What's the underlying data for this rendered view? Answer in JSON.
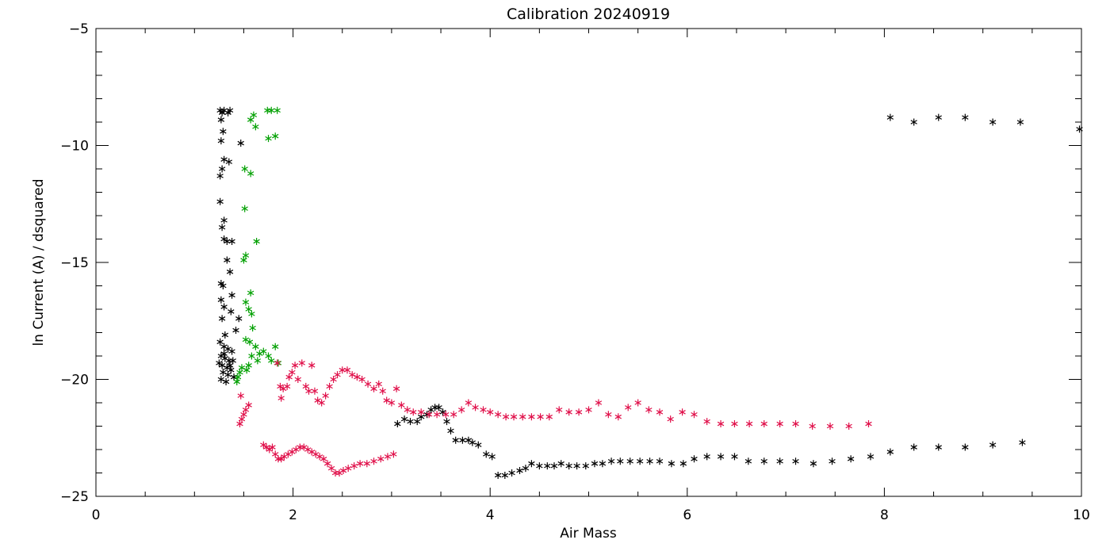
{
  "chart_data": {
    "type": "scatter",
    "title": "Calibration 20240919",
    "xlabel": "Air Mass",
    "ylabel": "ln Current (A) / dsquared",
    "xlim": [
      0,
      10
    ],
    "ylim": [
      -25,
      -5
    ],
    "x_ticks": [
      0,
      2,
      4,
      6,
      8,
      10
    ],
    "x_tick_labels": [
      "0",
      "2",
      "4",
      "6",
      "8",
      "10"
    ],
    "y_ticks": [
      -25,
      -20,
      -15,
      -10,
      -5
    ],
    "y_tick_labels": [
      "−25",
      "−20",
      "−15",
      "−10",
      "−5"
    ],
    "marker": "asterisk",
    "grid": false,
    "legend": "none",
    "series": [
      {
        "color": "#000000",
        "points": [
          [
            1.26,
            -8.5
          ],
          [
            1.28,
            -8.6
          ],
          [
            1.27,
            -8.9
          ],
          [
            1.3,
            -8.5
          ],
          [
            1.34,
            -8.6
          ],
          [
            1.36,
            -8.5
          ],
          [
            1.29,
            -9.4
          ],
          [
            1.27,
            -9.8
          ],
          [
            1.35,
            -10.7
          ],
          [
            1.3,
            -10.6
          ],
          [
            1.28,
            -11.0
          ],
          [
            1.26,
            -11.3
          ],
          [
            1.47,
            -9.9
          ],
          [
            1.26,
            -12.4
          ],
          [
            1.3,
            -13.2
          ],
          [
            1.28,
            -13.5
          ],
          [
            1.3,
            -14.0
          ],
          [
            1.33,
            -14.1
          ],
          [
            1.38,
            -14.1
          ],
          [
            1.33,
            -14.9
          ],
          [
            1.36,
            -15.4
          ],
          [
            1.27,
            -15.9
          ],
          [
            1.29,
            -16.0
          ],
          [
            1.38,
            -16.4
          ],
          [
            1.27,
            -16.6
          ],
          [
            1.3,
            -16.9
          ],
          [
            1.37,
            -17.1
          ],
          [
            1.28,
            -17.4
          ],
          [
            1.45,
            -17.4
          ],
          [
            1.42,
            -17.9
          ],
          [
            1.31,
            -18.1
          ],
          [
            1.26,
            -18.4
          ],
          [
            1.3,
            -18.6
          ],
          [
            1.34,
            -18.7
          ],
          [
            1.38,
            -18.8
          ],
          [
            1.27,
            -19.0
          ],
          [
            1.31,
            -19.1
          ],
          [
            1.35,
            -19.2
          ],
          [
            1.28,
            -19.4
          ],
          [
            1.33,
            -19.5
          ],
          [
            1.37,
            -19.6
          ],
          [
            1.29,
            -19.7
          ],
          [
            1.34,
            -19.8
          ],
          [
            1.4,
            -19.9
          ],
          [
            1.27,
            -20.0
          ],
          [
            1.32,
            -20.1
          ],
          [
            1.36,
            -19.4
          ],
          [
            1.3,
            -18.9
          ],
          [
            1.25,
            -19.3
          ],
          [
            1.39,
            -19.2
          ],
          [
            3.06,
            -21.9
          ],
          [
            3.13,
            -21.7
          ],
          [
            3.19,
            -21.8
          ],
          [
            3.26,
            -21.8
          ],
          [
            3.3,
            -21.6
          ],
          [
            3.36,
            -21.5
          ],
          [
            3.4,
            -21.3
          ],
          [
            3.44,
            -21.2
          ],
          [
            3.48,
            -21.2
          ],
          [
            3.52,
            -21.4
          ],
          [
            3.56,
            -21.8
          ],
          [
            3.6,
            -22.2
          ],
          [
            3.65,
            -22.6
          ],
          [
            3.72,
            -22.6
          ],
          [
            3.78,
            -22.6
          ],
          [
            3.82,
            -22.7
          ],
          [
            3.88,
            -22.8
          ],
          [
            3.96,
            -23.2
          ],
          [
            4.02,
            -23.3
          ],
          [
            4.08,
            -24.1
          ],
          [
            4.15,
            -24.1
          ],
          [
            4.22,
            -24.0
          ],
          [
            4.3,
            -23.9
          ],
          [
            4.36,
            -23.8
          ],
          [
            4.42,
            -23.6
          ],
          [
            4.5,
            -23.7
          ],
          [
            4.58,
            -23.7
          ],
          [
            4.65,
            -23.7
          ],
          [
            4.72,
            -23.6
          ],
          [
            4.8,
            -23.7
          ],
          [
            4.88,
            -23.7
          ],
          [
            4.97,
            -23.7
          ],
          [
            5.06,
            -23.6
          ],
          [
            5.14,
            -23.6
          ],
          [
            5.23,
            -23.5
          ],
          [
            5.32,
            -23.5
          ],
          [
            5.42,
            -23.5
          ],
          [
            5.52,
            -23.5
          ],
          [
            5.62,
            -23.5
          ],
          [
            5.72,
            -23.5
          ],
          [
            5.84,
            -23.6
          ],
          [
            5.96,
            -23.6
          ],
          [
            6.07,
            -23.4
          ],
          [
            6.2,
            -23.3
          ],
          [
            6.34,
            -23.3
          ],
          [
            6.48,
            -23.3
          ],
          [
            6.62,
            -23.5
          ],
          [
            6.78,
            -23.5
          ],
          [
            6.94,
            -23.5
          ],
          [
            7.1,
            -23.5
          ],
          [
            7.28,
            -23.6
          ],
          [
            7.47,
            -23.5
          ],
          [
            7.66,
            -23.4
          ],
          [
            7.86,
            -23.3
          ],
          [
            8.06,
            -23.1
          ],
          [
            8.3,
            -22.9
          ],
          [
            8.55,
            -22.9
          ],
          [
            8.82,
            -22.9
          ],
          [
            9.1,
            -22.8
          ],
          [
            9.4,
            -22.7
          ],
          [
            8.06,
            -8.8
          ],
          [
            8.3,
            -9.0
          ],
          [
            8.55,
            -8.8
          ],
          [
            8.82,
            -8.8
          ],
          [
            9.1,
            -9.0
          ],
          [
            9.38,
            -9.0
          ],
          [
            9.98,
            -9.3
          ]
        ]
      },
      {
        "color": "#00a000",
        "points": [
          [
            1.74,
            -8.5
          ],
          [
            1.78,
            -8.5
          ],
          [
            1.84,
            -8.5
          ],
          [
            1.57,
            -8.9
          ],
          [
            1.6,
            -8.7
          ],
          [
            1.62,
            -9.2
          ],
          [
            1.75,
            -9.7
          ],
          [
            1.82,
            -9.6
          ],
          [
            1.51,
            -11.0
          ],
          [
            1.57,
            -11.2
          ],
          [
            1.51,
            -12.7
          ],
          [
            1.63,
            -14.1
          ],
          [
            1.52,
            -14.7
          ],
          [
            1.5,
            -14.9
          ],
          [
            1.57,
            -16.3
          ],
          [
            1.52,
            -16.7
          ],
          [
            1.55,
            -17.0
          ],
          [
            1.58,
            -17.2
          ],
          [
            1.59,
            -17.8
          ],
          [
            1.52,
            -18.3
          ],
          [
            1.56,
            -18.4
          ],
          [
            1.62,
            -18.6
          ],
          [
            1.66,
            -18.9
          ],
          [
            1.7,
            -18.8
          ],
          [
            1.58,
            -19.0
          ],
          [
            1.64,
            -19.2
          ],
          [
            1.55,
            -19.4
          ],
          [
            1.48,
            -19.5
          ],
          [
            1.46,
            -19.7
          ],
          [
            1.44,
            -19.9
          ],
          [
            1.43,
            -20.1
          ],
          [
            1.53,
            -19.6
          ],
          [
            1.75,
            -19.0
          ],
          [
            1.82,
            -18.6
          ],
          [
            1.78,
            -19.2
          ],
          [
            1.85,
            -19.3
          ]
        ]
      },
      {
        "color": "#e0104a",
        "points": [
          [
            1.46,
            -21.9
          ],
          [
            1.48,
            -21.7
          ],
          [
            1.5,
            -21.5
          ],
          [
            1.52,
            -21.3
          ],
          [
            1.55,
            -21.1
          ],
          [
            1.47,
            -20.7
          ],
          [
            1.84,
            -19.3
          ],
          [
            1.87,
            -20.3
          ],
          [
            1.88,
            -20.8
          ],
          [
            1.9,
            -20.4
          ],
          [
            1.94,
            -20.3
          ],
          [
            1.96,
            -19.9
          ],
          [
            1.99,
            -19.7
          ],
          [
            2.02,
            -19.4
          ],
          [
            2.05,
            -20.0
          ],
          [
            2.09,
            -19.3
          ],
          [
            2.13,
            -20.3
          ],
          [
            2.16,
            -20.5
          ],
          [
            2.19,
            -19.4
          ],
          [
            2.22,
            -20.5
          ],
          [
            2.25,
            -20.9
          ],
          [
            2.29,
            -21.0
          ],
          [
            2.33,
            -20.7
          ],
          [
            2.37,
            -20.3
          ],
          [
            2.41,
            -20.0
          ],
          [
            2.45,
            -19.8
          ],
          [
            2.5,
            -19.6
          ],
          [
            2.55,
            -19.6
          ],
          [
            2.6,
            -19.8
          ],
          [
            2.65,
            -19.9
          ],
          [
            2.7,
            -20.0
          ],
          [
            2.76,
            -20.2
          ],
          [
            2.82,
            -20.4
          ],
          [
            2.87,
            -20.2
          ],
          [
            2.91,
            -20.5
          ],
          [
            2.95,
            -20.9
          ],
          [
            3.0,
            -21.0
          ],
          [
            3.05,
            -20.4
          ],
          [
            3.1,
            -21.1
          ],
          [
            3.16,
            -21.3
          ],
          [
            3.22,
            -21.4
          ],
          [
            3.3,
            -21.4
          ],
          [
            3.38,
            -21.5
          ],
          [
            3.46,
            -21.5
          ],
          [
            3.55,
            -21.5
          ],
          [
            3.63,
            -21.5
          ],
          [
            3.71,
            -21.3
          ],
          [
            3.78,
            -21.0
          ],
          [
            3.85,
            -21.2
          ],
          [
            3.93,
            -21.3
          ],
          [
            4.0,
            -21.4
          ],
          [
            4.08,
            -21.5
          ],
          [
            4.16,
            -21.6
          ],
          [
            4.24,
            -21.6
          ],
          [
            4.33,
            -21.6
          ],
          [
            4.42,
            -21.6
          ],
          [
            4.51,
            -21.6
          ],
          [
            4.6,
            -21.6
          ],
          [
            4.7,
            -21.3
          ],
          [
            4.8,
            -21.4
          ],
          [
            4.9,
            -21.4
          ],
          [
            5.0,
            -21.3
          ],
          [
            5.1,
            -21.0
          ],
          [
            5.2,
            -21.5
          ],
          [
            5.3,
            -21.6
          ],
          [
            5.4,
            -21.2
          ],
          [
            5.5,
            -21.0
          ],
          [
            5.61,
            -21.3
          ],
          [
            5.72,
            -21.4
          ],
          [
            5.83,
            -21.7
          ],
          [
            5.95,
            -21.4
          ],
          [
            6.07,
            -21.5
          ],
          [
            6.2,
            -21.8
          ],
          [
            6.34,
            -21.9
          ],
          [
            6.48,
            -21.9
          ],
          [
            6.63,
            -21.9
          ],
          [
            6.78,
            -21.9
          ],
          [
            6.94,
            -21.9
          ],
          [
            7.1,
            -21.9
          ],
          [
            7.27,
            -22.0
          ],
          [
            7.45,
            -22.0
          ],
          [
            7.64,
            -22.0
          ],
          [
            7.84,
            -21.9
          ],
          [
            1.7,
            -22.8
          ],
          [
            1.73,
            -22.9
          ],
          [
            1.76,
            -23.0
          ],
          [
            1.79,
            -22.9
          ],
          [
            1.82,
            -23.2
          ],
          [
            1.85,
            -23.4
          ],
          [
            1.88,
            -23.4
          ],
          [
            1.91,
            -23.3
          ],
          [
            1.95,
            -23.2
          ],
          [
            1.99,
            -23.1
          ],
          [
            2.03,
            -23.0
          ],
          [
            2.07,
            -22.9
          ],
          [
            2.11,
            -22.9
          ],
          [
            2.15,
            -23.0
          ],
          [
            2.19,
            -23.1
          ],
          [
            2.23,
            -23.2
          ],
          [
            2.27,
            -23.3
          ],
          [
            2.31,
            -23.4
          ],
          [
            2.35,
            -23.6
          ],
          [
            2.39,
            -23.8
          ],
          [
            2.43,
            -24.0
          ],
          [
            2.47,
            -24.0
          ],
          [
            2.51,
            -23.9
          ],
          [
            2.56,
            -23.8
          ],
          [
            2.62,
            -23.7
          ],
          [
            2.68,
            -23.6
          ],
          [
            2.75,
            -23.6
          ],
          [
            2.82,
            -23.5
          ],
          [
            2.89,
            -23.4
          ],
          [
            2.96,
            -23.3
          ],
          [
            3.02,
            -23.2
          ]
        ]
      }
    ]
  }
}
